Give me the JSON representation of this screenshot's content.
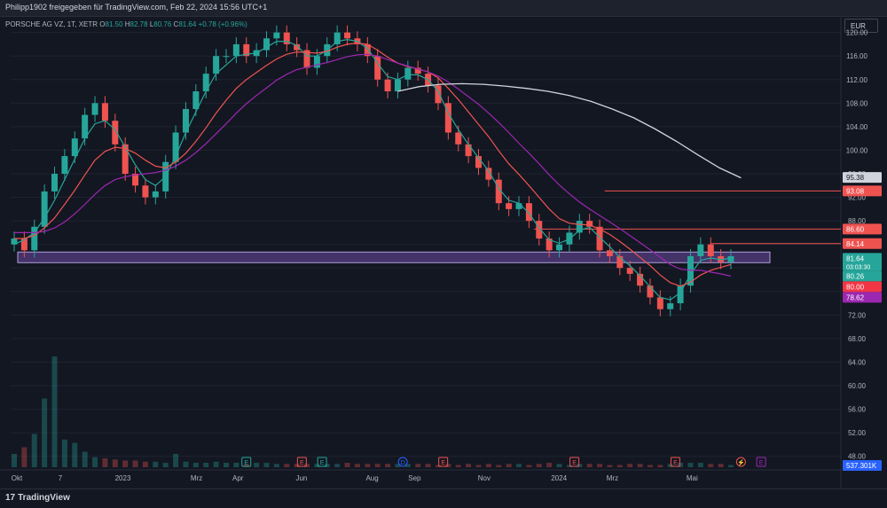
{
  "header": {
    "caption": "Philipp1902 freigegeben für TradingView.com, Feb 22, 2024 15:56 UTC+1"
  },
  "symbol": {
    "name": "PORSCHE AG VZ, 1T, XETR",
    "o_label": "O",
    "o": "81.50",
    "h_label": "H",
    "h": "82.78",
    "l_label": "L",
    "l": "80.76",
    "c_label": "C",
    "c": "81.64",
    "change": "+0.78 (+0.96%)"
  },
  "currency": "EUR",
  "footer": {
    "logo_mark": "17",
    "logo_text": "TradingView"
  },
  "colors": {
    "background": "#131722",
    "up": "#26a69a",
    "down": "#ef5350",
    "ma_fast": "#26a69a",
    "ma_mid": "#ef5350",
    "ma_slow": "#9c27b0",
    "ma_long": "#d1d4dc",
    "zone": "#7e57c2"
  },
  "chart_data": {
    "type": "candlestick",
    "y_axis": {
      "range": [
        46,
        121
      ],
      "ticks": [
        "120.00",
        "116.00",
        "112.00",
        "108.00",
        "104.00",
        "100.00",
        "96.00",
        "92.00",
        "88.00",
        "84.00",
        "80.00",
        "76.00",
        "72.00",
        "68.00",
        "64.00",
        "60.00",
        "56.00",
        "52.00",
        "48.00"
      ]
    },
    "x_axis": {
      "labels": [
        "Okt",
        "7",
        "2023",
        "Mrz",
        "Apr",
        "Jun",
        "Aug",
        "Sep",
        "Nov",
        "2024",
        "Mrz",
        "Mai"
      ]
    },
    "price_series": [
      85,
      83,
      87,
      93,
      96,
      99,
      102,
      106,
      108,
      105,
      101,
      96,
      94,
      92,
      93,
      98,
      103,
      107,
      110,
      113,
      116,
      116,
      118,
      116,
      117,
      119,
      120,
      118,
      117,
      114,
      116,
      118,
      120,
      119,
      118,
      116,
      112,
      110,
      112,
      114,
      113,
      111,
      108,
      103,
      101,
      99,
      97,
      95,
      91,
      90,
      91,
      88,
      85,
      83,
      84,
      86,
      88,
      87,
      83,
      82,
      80,
      79,
      77,
      75,
      73,
      74,
      77,
      82,
      84,
      82,
      81,
      82
    ],
    "series": [
      {
        "name": "",
        "values": [
          84,
          84.8,
          86,
          88.5,
          91.5,
          95,
          98.5,
          102,
          104.5,
          105,
          103.5,
          100.5,
          97.5,
          95,
          94,
          95.5,
          99,
          103,
          106.5,
          110,
          113,
          114.5,
          116,
          116.3,
          116.5,
          117.5,
          118.5,
          118.5,
          117.8,
          116,
          116,
          117,
          118.5,
          118.8,
          118.5,
          117.3,
          114.8,
          112.5,
          112,
          112.8,
          112.8,
          112,
          110,
          106.3,
          103.5,
          101,
          98.7,
          96.5,
          93.5,
          91.5,
          91,
          89.3,
          86.8,
          84.8,
          84.2,
          84.9,
          86.4,
          86.9,
          85.2,
          83.6,
          81.8,
          80.4,
          78.7,
          76.8,
          75,
          74.6,
          75.8,
          78.9,
          81.3,
          81.7,
          81.4,
          81.7
        ]
      },
      {
        "name": "",
        "values": [
          85,
          85,
          85.5,
          86.8,
          88.5,
          90.8,
          93.2,
          95.8,
          98.3,
          99.8,
          100.5,
          100.3,
          99.5,
          98.3,
          97.3,
          97,
          98,
          99.5,
          101.5,
          103.8,
          106.3,
          108.5,
          110.5,
          112,
          113.2,
          114.4,
          115.5,
          116.3,
          116.7,
          116.6,
          116.5,
          116.8,
          117.5,
          118,
          118.2,
          118,
          117,
          115.8,
          114.8,
          114.2,
          113.8,
          113.3,
          112.3,
          110.5,
          108.6,
          106.5,
          104.4,
          102.3,
          99.9,
          97.7,
          95.9,
          94,
          92,
          90,
          88.4,
          87.6,
          87.4,
          87.3,
          86.6,
          85.7,
          84.5,
          83.2,
          81.8,
          80.4,
          78.8,
          77.5,
          76.9,
          77.6,
          78.8,
          79.6,
          80.1,
          80.6
        ]
      },
      {
        "name": "",
        "values": [
          86,
          86,
          86,
          86.2,
          86.8,
          87.8,
          89.2,
          90.8,
          92.5,
          94,
          95,
          95.5,
          95.8,
          96,
          96.2,
          96.6,
          97.3,
          98.3,
          99.6,
          101.1,
          102.8,
          104.5,
          106.3,
          107.9,
          109.3,
          110.6,
          111.9,
          112.9,
          113.7,
          114.1,
          114.5,
          114.9,
          115.4,
          115.9,
          116.2,
          116.3,
          116,
          115.4,
          114.8,
          114.3,
          113.8,
          113.3,
          112.6,
          111.6,
          110.4,
          109.1,
          107.8,
          106.3,
          104.7,
          103,
          101.2,
          99.5,
          97.7,
          95.8,
          94.1,
          92.6,
          91.2,
          90,
          88.9,
          87.8,
          86.7,
          85.5,
          84.3,
          83.1,
          81.8,
          80.6,
          79.8,
          79.6,
          79.6,
          79.3,
          79,
          78.6
        ]
      }
    ],
    "long_ma_name": "",
    "long_ma_values": [
      110,
      110.8,
      111.2,
      111.3,
      111.2,
      110.9,
      110.5,
      110,
      109.3,
      108.3,
      107,
      105.5,
      103.6,
      101.5,
      99.2,
      97,
      95.3
    ],
    "long_ma_start_index": 38,
    "volume": [
      12,
      18,
      30,
      62,
      100,
      25,
      22,
      14,
      9,
      8,
      7,
      6,
      6,
      5,
      5,
      4,
      12,
      5,
      4,
      4,
      5,
      4,
      4,
      3,
      4,
      4,
      3,
      3,
      3,
      3,
      3,
      3,
      3,
      4,
      3,
      3,
      3,
      3,
      3,
      3,
      3,
      3,
      2,
      3,
      2,
      3,
      2,
      3,
      2,
      3,
      3,
      2,
      3,
      4,
      3,
      2,
      3,
      3,
      3,
      2,
      2,
      3,
      3,
      2,
      2,
      3,
      4,
      4,
      4,
      3,
      3,
      2
    ],
    "volume_label": "537.301K",
    "zone": {
      "low": 81.2,
      "high": 82.4,
      "x_start": 0,
      "x_end": 71
    },
    "levels": [
      {
        "value": "93.08",
        "from": 58.5,
        "color": "#ef5350"
      },
      {
        "value": "86.60",
        "from": 51.5,
        "color": "#ef5350"
      },
      {
        "value": "84.14",
        "from": 69,
        "color": "#ef5350"
      }
    ],
    "price_labels": [
      {
        "value": "95.38",
        "color": "#d1d4dc",
        "text_color": "#131722"
      },
      {
        "value": "93.08",
        "color": "#ef5350",
        "text_color": "#ffffff"
      },
      {
        "value": "86.60",
        "color": "#ef5350",
        "text_color": "#ffffff"
      },
      {
        "value": "84.14",
        "color": "#ef5350",
        "text_color": "#ffffff"
      },
      {
        "value": "81.64",
        "sub": "03:03:30",
        "color": "#26a69a",
        "text_color": "#ffffff"
      },
      {
        "value": "80.26",
        "color": "#26a69a",
        "text_color": "#ffffff"
      },
      {
        "value": "80.00",
        "color": "#f23645",
        "text_color": "#ffffff"
      },
      {
        "value": "78.62",
        "color": "#9c27b0",
        "text_color": "#ffffff"
      }
    ],
    "events": [
      {
        "label": "E",
        "color": "#26a69a",
        "at": 23
      },
      {
        "label": "E",
        "color": "#ef5350",
        "at": 28.5
      },
      {
        "label": "E",
        "color": "#26a69a",
        "at": 30.5
      },
      {
        "label": "D",
        "color": "#2962ff",
        "at": 38.5
      },
      {
        "label": "E",
        "color": "#ef5350",
        "at": 42.5
      },
      {
        "label": "E",
        "color": "#ef5350",
        "at": 55.5
      },
      {
        "label": "E",
        "color": "#ef5350",
        "at": 65.5
      },
      {
        "label": "⚡",
        "color": "#ef5350",
        "at": 72
      },
      {
        "label": "E",
        "color": "#9c27b0",
        "at": 74
      }
    ]
  }
}
